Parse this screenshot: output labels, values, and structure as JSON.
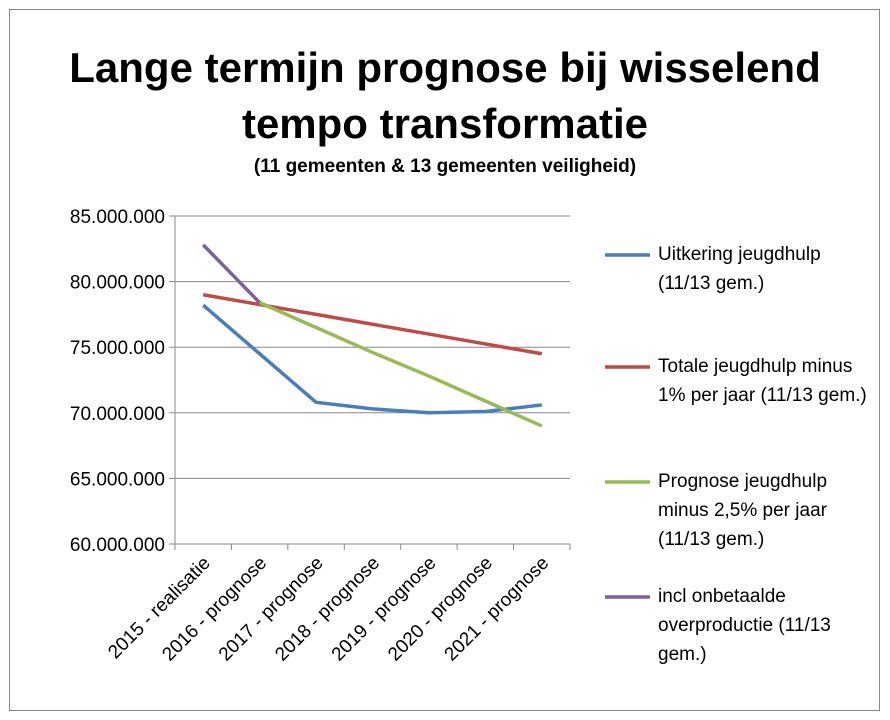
{
  "chart_data": {
    "type": "line",
    "title": "Lange termijn prognose bij wisselend tempo transformatie",
    "subtitle": "(11 gemeenten & 13 gemeenten veiligheid)",
    "categories": [
      "2015 - realisatie",
      "2016 - prognose",
      "2017 - prognose",
      "2018 - prognose",
      "2019 - prognose",
      "2020 - prognose",
      "2021 - prognose"
    ],
    "series": [
      {
        "name": "Uitkering jeugdhulp (11/13 gem.)",
        "color": "#4a7ebb",
        "values": [
          78200000,
          74500000,
          70800000,
          70300000,
          70000000,
          70100000,
          70600000
        ]
      },
      {
        "name": "Totale jeugdhulp minus 1% per jaar (11/13 gem.)",
        "color": "#be4b48",
        "values": [
          79000000,
          78250000,
          77500000,
          76750000,
          76000000,
          75250000,
          74500000
        ]
      },
      {
        "name": "Prognose jeugdhulp minus 2,5% per jaar (11/13 gem.)",
        "color": "#98b954",
        "values": [
          null,
          78400000,
          76500000,
          74600000,
          72800000,
          70900000,
          69000000
        ]
      },
      {
        "name": "incl onbetaalde overproductie (11/13 gem.)",
        "color": "#7d60a0",
        "values": [
          82800000,
          78400000,
          null,
          null,
          null,
          null,
          null
        ]
      }
    ],
    "ylim": [
      60000000,
      85000000
    ],
    "yticks": [
      {
        "value": 60000000,
        "label": "60.000.000"
      },
      {
        "value": 65000000,
        "label": "65.000.000"
      },
      {
        "value": 70000000,
        "label": "70.000.000"
      },
      {
        "value": 75000000,
        "label": "75.000.000"
      },
      {
        "value": 80000000,
        "label": "80.000.000"
      },
      {
        "value": 85000000,
        "label": "85.000.000"
      }
    ],
    "grid": true,
    "legend": "right"
  }
}
